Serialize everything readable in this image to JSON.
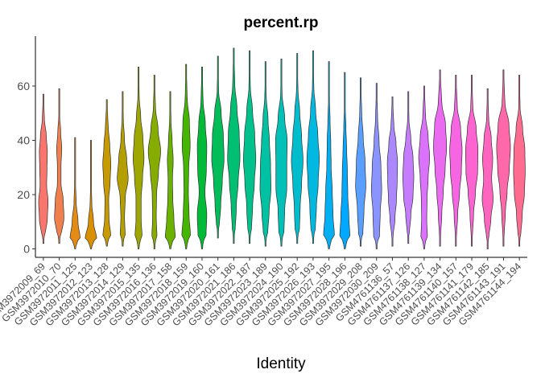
{
  "chart_data": {
    "type": "violin",
    "title": "percent.rp",
    "xlabel": "Identity",
    "ylabel": "",
    "ylim": [
      -3,
      78
    ],
    "yticks": [
      0,
      20,
      40,
      60
    ],
    "legend": "none",
    "grid": false,
    "groups": [
      {
        "name": "GSM3972009_69",
        "min": 2,
        "max": 57,
        "profile": [
          0.25,
          0.55,
          0.65,
          0.45,
          0.5,
          0.55,
          0.4,
          0.15
        ],
        "color": "#F8766D"
      },
      {
        "name": "GSM3972010_70",
        "min": 2,
        "max": 59,
        "profile": [
          0.3,
          0.65,
          0.55,
          0.25,
          0.25,
          0.35,
          0.2,
          0.05
        ],
        "color": "#F07F4E"
      },
      {
        "name": "GSM3972011_125",
        "min": 0,
        "max": 41,
        "profile": [
          0.7,
          0.4,
          0.15,
          0.07,
          0.03
        ],
        "color": "#E48A17"
      },
      {
        "name": "GSM3972012_123",
        "min": 0,
        "max": 40,
        "profile": [
          0.8,
          0.35,
          0.12,
          0.05,
          0.02
        ],
        "color": "#D89000"
      },
      {
        "name": "GSM3972013_128",
        "min": 1,
        "max": 55,
        "profile": [
          0.55,
          0.3,
          0.25,
          0.45,
          0.55,
          0.4,
          0.2
        ],
        "color": "#C69A00"
      },
      {
        "name": "GSM3972014_129",
        "min": 1,
        "max": 58,
        "profile": [
          0.35,
          0.25,
          0.35,
          0.75,
          0.55,
          0.25,
          0.1
        ],
        "color": "#B3A000"
      },
      {
        "name": "GSM3972015_135",
        "min": 0,
        "max": 67,
        "profile": [
          0.5,
          0.35,
          0.35,
          0.55,
          0.75,
          0.6,
          0.3,
          0.1
        ],
        "color": "#9EA700"
      },
      {
        "name": "GSM3972016_136",
        "min": 0,
        "max": 64,
        "profile": [
          0.35,
          0.25,
          0.3,
          0.55,
          0.85,
          0.5,
          0.15
        ],
        "color": "#86AC00"
      },
      {
        "name": "GSM3972017_158",
        "min": 0,
        "max": 58,
        "profile": [
          0.7,
          0.5,
          0.35,
          0.3,
          0.4,
          0.25,
          0.1
        ],
        "color": "#6BB100"
      },
      {
        "name": "GSM3972018_159",
        "min": 0,
        "max": 68,
        "profile": [
          0.6,
          0.4,
          0.3,
          0.35,
          0.55,
          0.45,
          0.15
        ],
        "color": "#46B500"
      },
      {
        "name": "GSM3972019_160",
        "min": 0,
        "max": 67,
        "profile": [
          0.55,
          0.65,
          0.4,
          0.6,
          0.65,
          0.45,
          0.15
        ],
        "color": "#00BA38"
      },
      {
        "name": "GSM3972020_161",
        "min": 4,
        "max": 71,
        "profile": [
          0.2,
          0.4,
          0.6,
          0.85,
          0.75,
          0.45,
          0.1
        ],
        "color": "#00BC59"
      },
      {
        "name": "GSM3972021_186",
        "min": 2,
        "max": 74,
        "profile": [
          0.2,
          0.35,
          0.6,
          0.85,
          0.75,
          0.45,
          0.15
        ],
        "color": "#00BE72"
      },
      {
        "name": "GSM3972022_187",
        "min": 2,
        "max": 73,
        "profile": [
          0.25,
          0.4,
          0.65,
          0.85,
          0.7,
          0.4,
          0.1
        ],
        "color": "#00C08B"
      },
      {
        "name": "GSM3972023_189",
        "min": 1,
        "max": 69,
        "profile": [
          0.3,
          0.5,
          0.75,
          0.7,
          0.55,
          0.35,
          0.1
        ],
        "color": "#00C1A2"
      },
      {
        "name": "GSM3972024_190",
        "min": 1,
        "max": 70,
        "profile": [
          0.35,
          0.45,
          0.75,
          0.75,
          0.8,
          0.45,
          0.1
        ],
        "color": "#00C0B8"
      },
      {
        "name": "GSM3972025_192",
        "min": 2,
        "max": 72,
        "profile": [
          0.3,
          0.4,
          0.6,
          0.8,
          0.6,
          0.35,
          0.1
        ],
        "color": "#00BDCD"
      },
      {
        "name": "GSM3972026_193",
        "min": 2,
        "max": 73,
        "profile": [
          0.3,
          0.45,
          0.7,
          0.85,
          0.65,
          0.35,
          0.1
        ],
        "color": "#00B8E0"
      },
      {
        "name": "GSM3972027_195",
        "min": 0,
        "max": 69,
        "profile": [
          0.75,
          0.55,
          0.45,
          0.3,
          0.25,
          0.15,
          0.05
        ],
        "color": "#00B0F2"
      },
      {
        "name": "GSM3972028_196",
        "min": 0,
        "max": 65,
        "profile": [
          0.7,
          0.55,
          0.4,
          0.35,
          0.25,
          0.15,
          0.05
        ],
        "color": "#00A8FF"
      },
      {
        "name": "GSM3972029_208",
        "min": 1,
        "max": 63,
        "profile": [
          0.3,
          0.45,
          0.7,
          0.6,
          0.35,
          0.15
        ],
        "color": "#5A9EFF"
      },
      {
        "name": "GSM3972030_209",
        "min": 0,
        "max": 61,
        "profile": [
          0.4,
          0.5,
          0.7,
          0.6,
          0.35,
          0.15
        ],
        "color": "#8B93FF"
      },
      {
        "name": "GSM4761136_57",
        "min": 1,
        "max": 56,
        "profile": [
          0.1,
          0.35,
          0.55,
          0.65,
          0.7,
          0.5,
          0.2
        ],
        "color": "#AB88FF"
      },
      {
        "name": "GSM4761137_126",
        "min": 2,
        "max": 58,
        "profile": [
          0.15,
          0.35,
          0.65,
          0.75,
          0.65,
          0.35,
          0.1
        ],
        "color": "#C57CFF"
      },
      {
        "name": "GSM4761138_127",
        "min": 0,
        "max": 60,
        "profile": [
          0.45,
          0.35,
          0.4,
          0.55,
          0.75,
          0.55,
          0.2
        ],
        "color": "#DA72FB"
      },
      {
        "name": "GSM4761139_134",
        "min": 1,
        "max": 66,
        "profile": [
          0.1,
          0.25,
          0.45,
          0.7,
          0.9,
          0.75,
          0.25
        ],
        "color": "#EA6AF0"
      },
      {
        "name": "GSM4761140_157",
        "min": 1,
        "max": 64,
        "profile": [
          0.1,
          0.25,
          0.5,
          0.75,
          0.85,
          0.65,
          0.2
        ],
        "color": "#F666E3"
      },
      {
        "name": "GSM4761141_179",
        "min": 1,
        "max": 64,
        "profile": [
          0.1,
          0.25,
          0.5,
          0.8,
          0.85,
          0.6,
          0.15
        ],
        "color": "#FD64D2"
      },
      {
        "name": "GSM4761142_185",
        "min": 0,
        "max": 59,
        "profile": [
          0.15,
          0.45,
          0.75,
          0.55,
          0.7,
          0.5,
          0.15
        ],
        "color": "#FF65BF"
      },
      {
        "name": "GSM4761143_191",
        "min": 1,
        "max": 66,
        "profile": [
          0.1,
          0.25,
          0.5,
          0.8,
          0.95,
          0.75,
          0.2
        ],
        "color": "#FF68A9"
      },
      {
        "name": "GSM4761144_194",
        "min": 1,
        "max": 64,
        "profile": [
          0.2,
          0.4,
          0.7,
          0.8,
          0.75,
          0.45,
          0.1
        ],
        "color": "#FF6C90"
      }
    ]
  }
}
